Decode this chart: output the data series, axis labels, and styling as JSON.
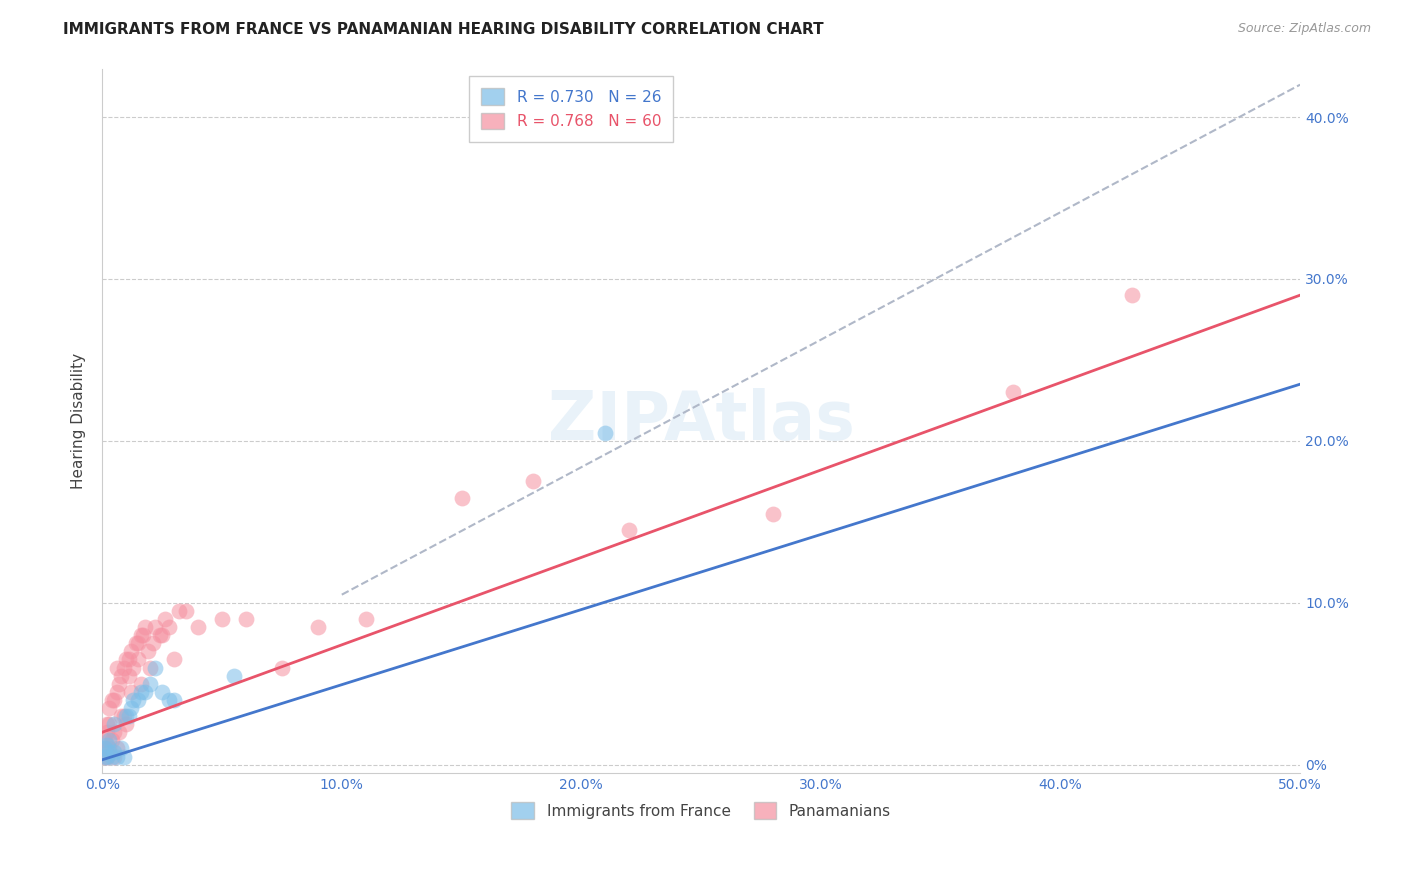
{
  "title": "IMMIGRANTS FROM FRANCE VS PANAMANIAN HEARING DISABILITY CORRELATION CHART",
  "source": "Source: ZipAtlas.com",
  "ylabel": "Hearing Disability",
  "xlim": [
    0.0,
    0.5
  ],
  "ylim": [
    -0.005,
    0.43
  ],
  "legend1_r": "0.730",
  "legend1_n": "26",
  "legend2_r": "0.768",
  "legend2_n": "60",
  "blue_color": "#7bbde8",
  "pink_color": "#f590a0",
  "blue_line_color": "#4477cc",
  "pink_line_color": "#e8546a",
  "dashed_line_color": "#b0b8c8",
  "watermark": "ZIPAtlas",
  "blue_scatter_x": [
    0.001,
    0.001,
    0.002,
    0.002,
    0.003,
    0.003,
    0.004,
    0.005,
    0.005,
    0.006,
    0.008,
    0.009,
    0.01,
    0.011,
    0.012,
    0.013,
    0.015,
    0.016,
    0.018,
    0.02,
    0.022,
    0.025,
    0.028,
    0.03,
    0.055,
    0.21
  ],
  "blue_scatter_y": [
    0.005,
    0.01,
    0.005,
    0.012,
    0.008,
    0.015,
    0.005,
    0.008,
    0.025,
    0.005,
    0.01,
    0.005,
    0.03,
    0.03,
    0.035,
    0.04,
    0.04,
    0.045,
    0.045,
    0.05,
    0.06,
    0.045,
    0.04,
    0.04,
    0.055,
    0.205
  ],
  "pink_scatter_x": [
    0.001,
    0.001,
    0.001,
    0.002,
    0.002,
    0.002,
    0.003,
    0.003,
    0.003,
    0.004,
    0.004,
    0.005,
    0.005,
    0.005,
    0.006,
    0.006,
    0.006,
    0.007,
    0.007,
    0.008,
    0.008,
    0.009,
    0.009,
    0.01,
    0.01,
    0.011,
    0.011,
    0.012,
    0.012,
    0.013,
    0.014,
    0.015,
    0.015,
    0.016,
    0.016,
    0.017,
    0.018,
    0.019,
    0.02,
    0.021,
    0.022,
    0.024,
    0.025,
    0.026,
    0.028,
    0.03,
    0.032,
    0.035,
    0.04,
    0.05,
    0.06,
    0.075,
    0.09,
    0.11,
    0.15,
    0.18,
    0.22,
    0.28,
    0.38,
    0.43
  ],
  "pink_scatter_y": [
    0.005,
    0.01,
    0.015,
    0.005,
    0.02,
    0.025,
    0.01,
    0.025,
    0.035,
    0.015,
    0.04,
    0.005,
    0.02,
    0.04,
    0.01,
    0.045,
    0.06,
    0.02,
    0.05,
    0.03,
    0.055,
    0.03,
    0.06,
    0.025,
    0.065,
    0.055,
    0.065,
    0.045,
    0.07,
    0.06,
    0.075,
    0.065,
    0.075,
    0.05,
    0.08,
    0.08,
    0.085,
    0.07,
    0.06,
    0.075,
    0.085,
    0.08,
    0.08,
    0.09,
    0.085,
    0.065,
    0.095,
    0.095,
    0.085,
    0.09,
    0.09,
    0.06,
    0.085,
    0.09,
    0.165,
    0.175,
    0.145,
    0.155,
    0.23,
    0.29
  ],
  "blue_line_x0": 0.0,
  "blue_line_y0": 0.003,
  "blue_line_x1": 0.5,
  "blue_line_y1": 0.235,
  "pink_line_x0": 0.0,
  "pink_line_y0": 0.02,
  "pink_line_x1": 0.5,
  "pink_line_y1": 0.29,
  "dash_line_x0": 0.1,
  "dash_line_y0": 0.105,
  "dash_line_x1": 0.5,
  "dash_line_y1": 0.42,
  "xtick_vals": [
    0.0,
    0.1,
    0.2,
    0.3,
    0.4,
    0.5
  ],
  "xtick_labels": [
    "0.0%",
    "10.0%",
    "20.0%",
    "30.0%",
    "40.0%",
    "50.0%"
  ],
  "ytick_vals": [
    0.0,
    0.1,
    0.2,
    0.3,
    0.4
  ],
  "ytick_labels_right": [
    "0%",
    "10.0%",
    "20.0%",
    "30.0%",
    "40.0%"
  ]
}
